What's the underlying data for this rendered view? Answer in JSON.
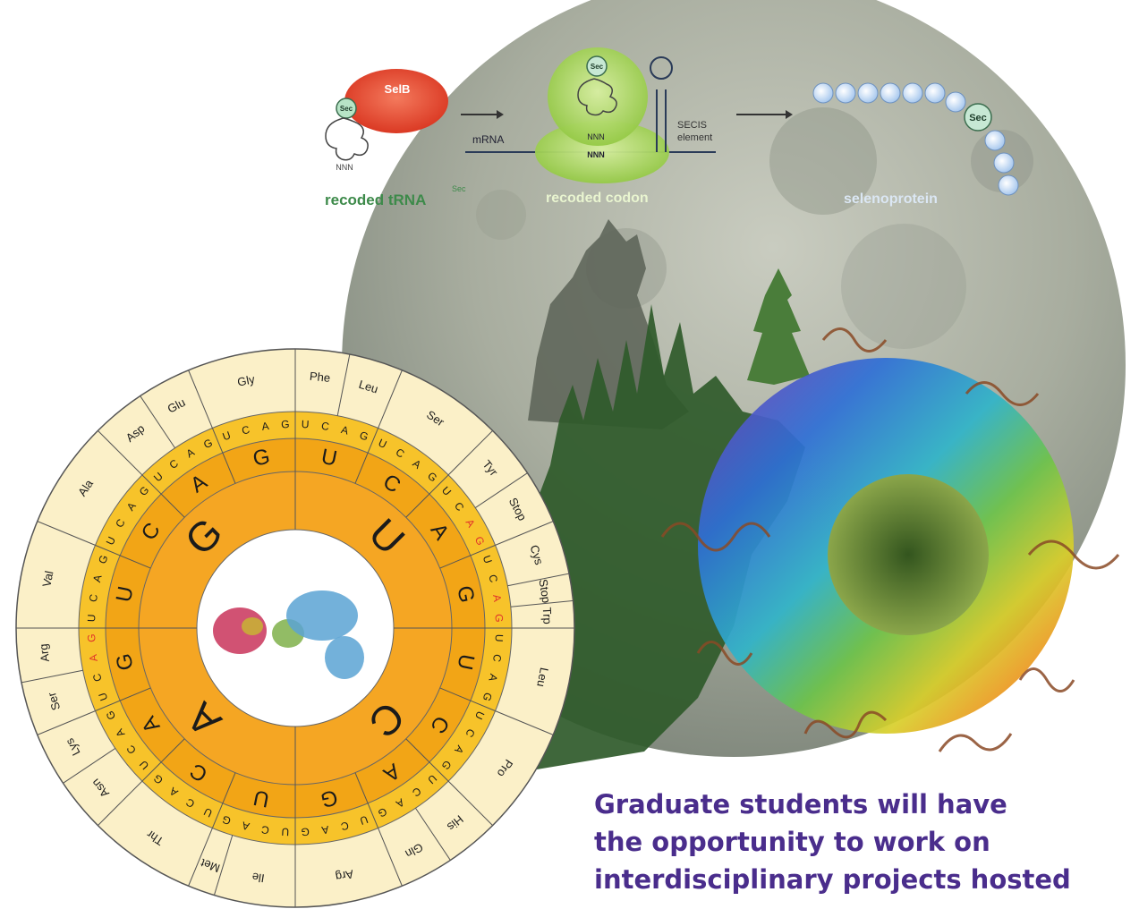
{
  "pathway": {
    "selb": "SelB",
    "sec": "Sec",
    "nnn": "NNN",
    "mrna": "mRNA",
    "secis": "SECIS",
    "element": "element",
    "trna_label": "recoded tRNA",
    "trna_sup": "Sec",
    "codon_label": "recoded codon",
    "protein_label": "selenoprotein"
  },
  "wheel": {
    "inner_bases": [
      "U",
      "C",
      "A",
      "G"
    ],
    "middle_bases": [
      "U",
      "C",
      "A",
      "G",
      "U",
      "C",
      "A",
      "G",
      "U",
      "C",
      "A",
      "G",
      "U",
      "C",
      "A",
      "G"
    ],
    "outer_ring": "UCAGUCAGUCAGUCAGUCAGUCAGUCAGUCAGUCAGUCAGUCAGUCAGUCAGUCAGUCAGUCAG",
    "amino_acids": [
      {
        "label": "Phe",
        "start": 0,
        "span": 2
      },
      {
        "label": "Leu",
        "start": 2,
        "span": 2
      },
      {
        "label": "Ser",
        "start": 4,
        "span": 4
      },
      {
        "label": "Tyr",
        "start": 8,
        "span": 2
      },
      {
        "label": "Stop",
        "start": 10,
        "span": 2
      },
      {
        "label": "Cys",
        "start": 12,
        "span": 2
      },
      {
        "label": "Stop",
        "start": 14,
        "span": 1
      },
      {
        "label": "Trp",
        "start": 15,
        "span": 1
      },
      {
        "label": "Leu",
        "start": 16,
        "span": 4
      },
      {
        "label": "Pro",
        "start": 20,
        "span": 4
      },
      {
        "label": "His",
        "start": 24,
        "span": 2
      },
      {
        "label": "Gln",
        "start": 26,
        "span": 2
      },
      {
        "label": "Arg",
        "start": 28,
        "span": 4
      },
      {
        "label": "Ile",
        "start": 32,
        "span": 3
      },
      {
        "label": "Met",
        "start": 35,
        "span": 1
      },
      {
        "label": "Thr",
        "start": 36,
        "span": 4
      },
      {
        "label": "Asn",
        "start": 40,
        "span": 2
      },
      {
        "label": "Lys",
        "start": 42,
        "span": 2
      },
      {
        "label": "Ser",
        "start": 44,
        "span": 2
      },
      {
        "label": "Arg",
        "start": 46,
        "span": 2
      },
      {
        "label": "Val",
        "start": 48,
        "span": 4
      },
      {
        "label": "Ala",
        "start": 52,
        "span": 4
      },
      {
        "label": "Asp",
        "start": 56,
        "span": 2
      },
      {
        "label": "Glu",
        "start": 58,
        "span": 2
      },
      {
        "label": "Gly",
        "start": 60,
        "span": 4
      }
    ],
    "highlight_positions": [
      10,
      11,
      14,
      15,
      46,
      47
    ]
  },
  "caption": {
    "line1": "Graduate students will have",
    "line2": "the opportunity to work on",
    "line3": "interdisciplinary projects hosted"
  },
  "colors": {
    "caption": "#4a2d8c",
    "wheel_outer": "#fbf0c8",
    "wheel_band": "#f7c32a",
    "wheel_middle": "#f2a516",
    "wheel_core": "#f5a623",
    "selb": "#e8412b",
    "ribosome": "#a6d25a",
    "bead": "#d6e8fb",
    "label_green": "#3d8a4a"
  }
}
